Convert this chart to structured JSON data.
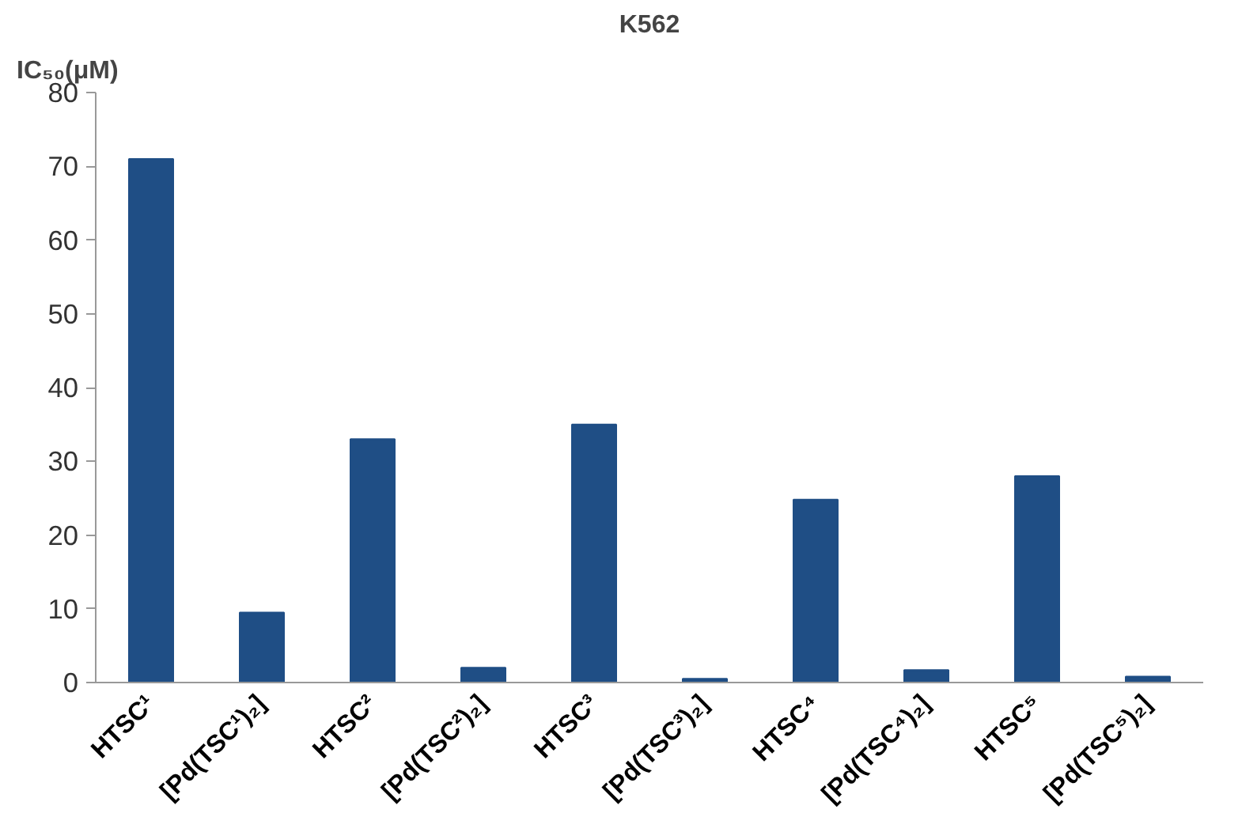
{
  "chart_data": {
    "type": "bar",
    "title": "K562",
    "ylabel": "IC₅₀(μM)",
    "categories": [
      "HTSC¹",
      "[Pd(TSC¹)₂]",
      "HTSC²",
      "[Pd(TSC²)₂]",
      "HTSC³",
      "[Pd(TSC³)₂]",
      "HTSC⁴",
      "[Pd(TSC⁴)₂]",
      "HTSC⁵",
      "[Pd(TSC⁵)₂]"
    ],
    "values": [
      71,
      9.5,
      33,
      2,
      35,
      0.5,
      24.8,
      1.7,
      28,
      0.8
    ],
    "color": "#1f4e85",
    "ylim": [
      0,
      80
    ],
    "yticks": [
      0,
      10,
      20,
      30,
      40,
      50,
      60,
      70,
      80
    ],
    "grid": false
  }
}
